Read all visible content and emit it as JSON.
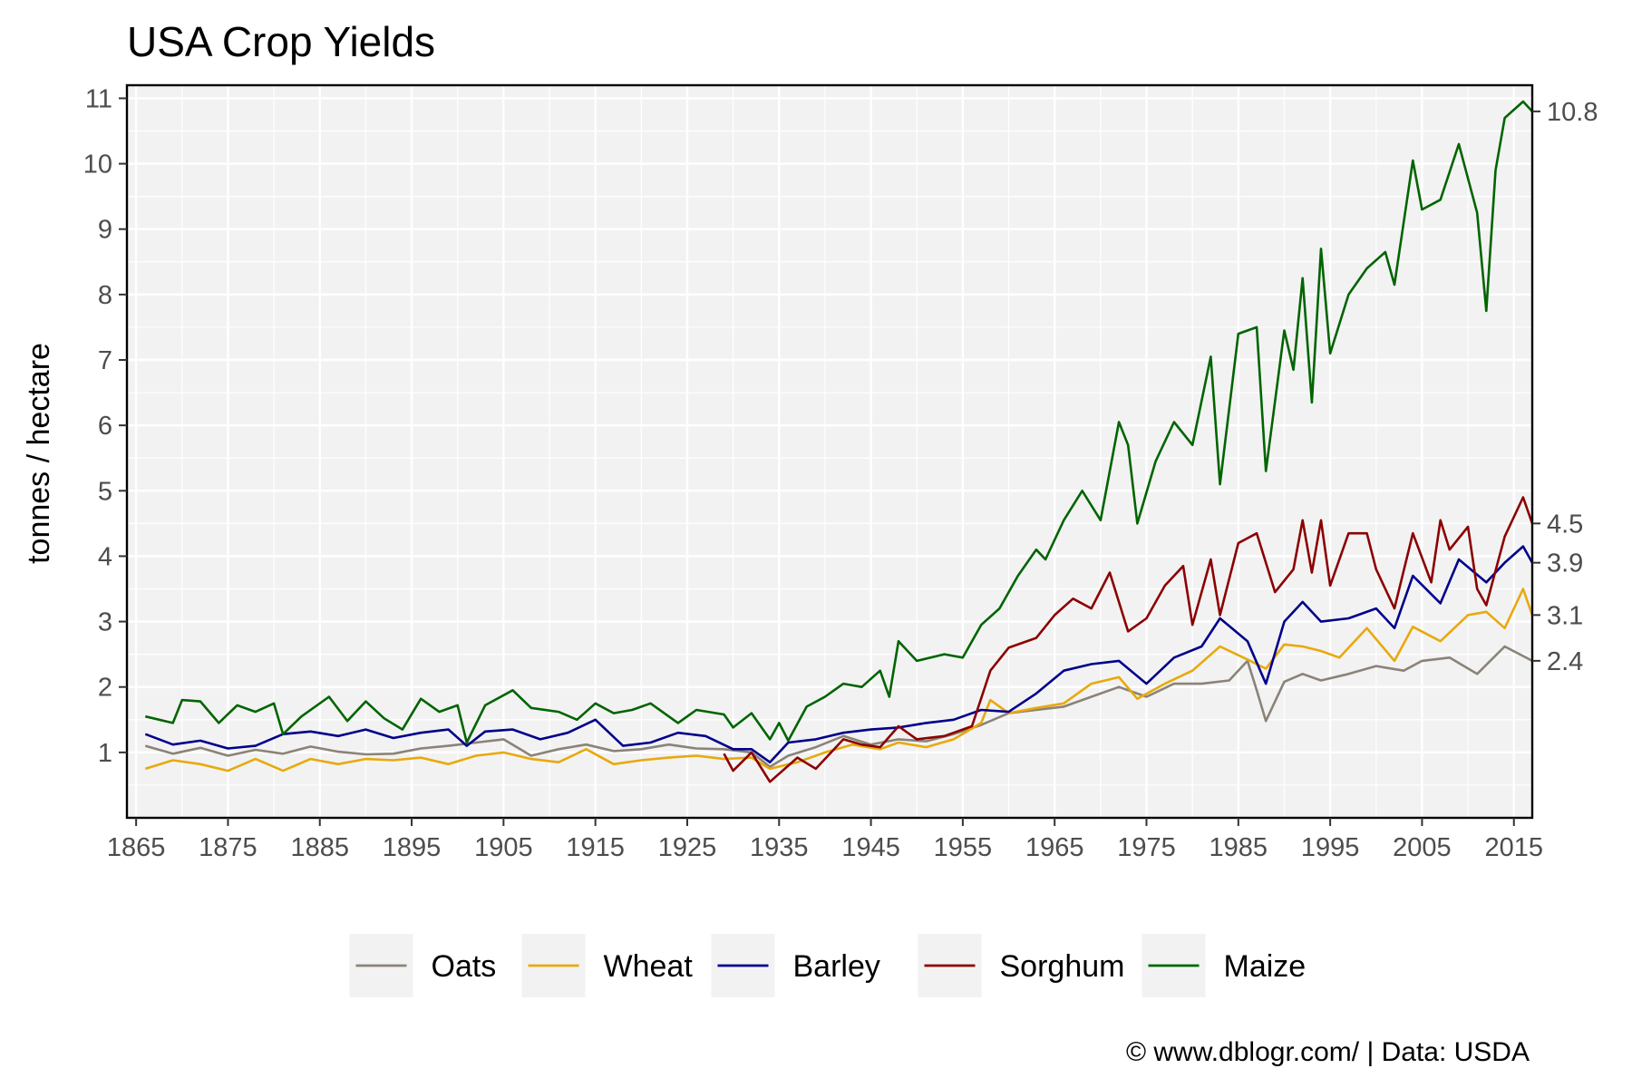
{
  "chart_data": {
    "type": "line",
    "title": "USA Crop Yields",
    "xlabel": "",
    "ylabel": "tonnes / hectare",
    "xlim": [
      1864,
      2017
    ],
    "ylim": [
      0,
      11.2
    ],
    "xticks": [
      1865,
      1875,
      1885,
      1895,
      1905,
      1915,
      1925,
      1935,
      1945,
      1955,
      1965,
      1975,
      1985,
      1995,
      2005,
      2015
    ],
    "yticks": [
      1,
      2,
      3,
      4,
      5,
      6,
      7,
      8,
      9,
      10,
      11
    ],
    "grid": true,
    "legend_position": "bottom",
    "caption": "© www.dblogr.com/  |  Data: USDA",
    "end_labels": [
      {
        "series": "Maize",
        "label": "10.8",
        "value": 10.8
      },
      {
        "series": "Sorghum",
        "label": "4.5",
        "value": 4.5
      },
      {
        "series": "Barley",
        "label": "3.9",
        "value": 3.9
      },
      {
        "series": "Wheat",
        "label": "3.1",
        "value": 3.1
      },
      {
        "series": "Oats",
        "label": "2.4",
        "value": 2.4
      }
    ],
    "series": [
      {
        "name": "Oats",
        "color": "#8b8378",
        "points": [
          [
            1866,
            1.1
          ],
          [
            1869,
            0.98
          ],
          [
            1872,
            1.07
          ],
          [
            1875,
            0.95
          ],
          [
            1878,
            1.04
          ],
          [
            1881,
            0.98
          ],
          [
            1884,
            1.09
          ],
          [
            1887,
            1.01
          ],
          [
            1890,
            0.97
          ],
          [
            1893,
            0.98
          ],
          [
            1896,
            1.06
          ],
          [
            1899,
            1.1
          ],
          [
            1902,
            1.15
          ],
          [
            1905,
            1.2
          ],
          [
            1908,
            0.95
          ],
          [
            1911,
            1.05
          ],
          [
            1914,
            1.12
          ],
          [
            1917,
            1.02
          ],
          [
            1920,
            1.05
          ],
          [
            1923,
            1.12
          ],
          [
            1926,
            1.06
          ],
          [
            1929,
            1.05
          ],
          [
            1932,
            1.0
          ],
          [
            1934,
            0.78
          ],
          [
            1936,
            0.95
          ],
          [
            1939,
            1.08
          ],
          [
            1942,
            1.25
          ],
          [
            1945,
            1.12
          ],
          [
            1948,
            1.2
          ],
          [
            1951,
            1.17
          ],
          [
            1954,
            1.28
          ],
          [
            1957,
            1.42
          ],
          [
            1960,
            1.6
          ],
          [
            1963,
            1.65
          ],
          [
            1966,
            1.7
          ],
          [
            1969,
            1.85
          ],
          [
            1972,
            2.0
          ],
          [
            1975,
            1.85
          ],
          [
            1978,
            2.05
          ],
          [
            1981,
            2.05
          ],
          [
            1984,
            2.1
          ],
          [
            1986,
            2.4
          ],
          [
            1987,
            1.95
          ],
          [
            1988,
            1.48
          ],
          [
            1990,
            2.08
          ],
          [
            1992,
            2.2
          ],
          [
            1994,
            2.1
          ],
          [
            1997,
            2.2
          ],
          [
            2000,
            2.32
          ],
          [
            2003,
            2.25
          ],
          [
            2005,
            2.4
          ],
          [
            2008,
            2.45
          ],
          [
            2011,
            2.2
          ],
          [
            2014,
            2.62
          ],
          [
            2017,
            2.4
          ]
        ]
      },
      {
        "name": "Wheat",
        "color": "#e8a90c",
        "points": [
          [
            1866,
            0.75
          ],
          [
            1869,
            0.88
          ],
          [
            1872,
            0.82
          ],
          [
            1875,
            0.72
          ],
          [
            1878,
            0.9
          ],
          [
            1881,
            0.72
          ],
          [
            1884,
            0.9
          ],
          [
            1887,
            0.82
          ],
          [
            1890,
            0.9
          ],
          [
            1893,
            0.88
          ],
          [
            1896,
            0.92
          ],
          [
            1899,
            0.82
          ],
          [
            1902,
            0.95
          ],
          [
            1905,
            1.0
          ],
          [
            1908,
            0.9
          ],
          [
            1911,
            0.85
          ],
          [
            1914,
            1.05
          ],
          [
            1917,
            0.82
          ],
          [
            1920,
            0.88
          ],
          [
            1923,
            0.92
          ],
          [
            1926,
            0.95
          ],
          [
            1929,
            0.9
          ],
          [
            1932,
            0.92
          ],
          [
            1934,
            0.75
          ],
          [
            1937,
            0.85
          ],
          [
            1940,
            1.0
          ],
          [
            1943,
            1.12
          ],
          [
            1946,
            1.05
          ],
          [
            1948,
            1.15
          ],
          [
            1951,
            1.08
          ],
          [
            1954,
            1.2
          ],
          [
            1957,
            1.45
          ],
          [
            1958,
            1.8
          ],
          [
            1960,
            1.6
          ],
          [
            1963,
            1.68
          ],
          [
            1966,
            1.75
          ],
          [
            1969,
            2.05
          ],
          [
            1972,
            2.15
          ],
          [
            1974,
            1.82
          ],
          [
            1977,
            2.05
          ],
          [
            1980,
            2.25
          ],
          [
            1983,
            2.62
          ],
          [
            1986,
            2.42
          ],
          [
            1988,
            2.28
          ],
          [
            1990,
            2.65
          ],
          [
            1992,
            2.62
          ],
          [
            1994,
            2.55
          ],
          [
            1996,
            2.45
          ],
          [
            1999,
            2.9
          ],
          [
            2002,
            2.4
          ],
          [
            2004,
            2.92
          ],
          [
            2007,
            2.7
          ],
          [
            2010,
            3.1
          ],
          [
            2012,
            3.15
          ],
          [
            2014,
            2.9
          ],
          [
            2016,
            3.5
          ],
          [
            2017,
            3.1
          ]
        ]
      },
      {
        "name": "Barley",
        "color": "#00008b",
        "points": [
          [
            1866,
            1.28
          ],
          [
            1869,
            1.12
          ],
          [
            1872,
            1.18
          ],
          [
            1875,
            1.06
          ],
          [
            1878,
            1.1
          ],
          [
            1881,
            1.28
          ],
          [
            1884,
            1.32
          ],
          [
            1887,
            1.25
          ],
          [
            1890,
            1.35
          ],
          [
            1893,
            1.22
          ],
          [
            1896,
            1.3
          ],
          [
            1899,
            1.35
          ],
          [
            1901,
            1.1
          ],
          [
            1903,
            1.32
          ],
          [
            1906,
            1.35
          ],
          [
            1909,
            1.2
          ],
          [
            1912,
            1.3
          ],
          [
            1915,
            1.5
          ],
          [
            1918,
            1.1
          ],
          [
            1921,
            1.15
          ],
          [
            1924,
            1.3
          ],
          [
            1927,
            1.25
          ],
          [
            1930,
            1.05
          ],
          [
            1932,
            1.05
          ],
          [
            1934,
            0.85
          ],
          [
            1936,
            1.15
          ],
          [
            1939,
            1.2
          ],
          [
            1942,
            1.3
          ],
          [
            1945,
            1.35
          ],
          [
            1948,
            1.38
          ],
          [
            1951,
            1.45
          ],
          [
            1954,
            1.5
          ],
          [
            1957,
            1.65
          ],
          [
            1960,
            1.62
          ],
          [
            1963,
            1.9
          ],
          [
            1966,
            2.25
          ],
          [
            1969,
            2.35
          ],
          [
            1972,
            2.4
          ],
          [
            1975,
            2.05
          ],
          [
            1978,
            2.45
          ],
          [
            1981,
            2.62
          ],
          [
            1983,
            3.05
          ],
          [
            1986,
            2.7
          ],
          [
            1988,
            2.05
          ],
          [
            1990,
            3.0
          ],
          [
            1992,
            3.3
          ],
          [
            1994,
            3.0
          ],
          [
            1997,
            3.05
          ],
          [
            2000,
            3.2
          ],
          [
            2002,
            2.9
          ],
          [
            2004,
            3.7
          ],
          [
            2007,
            3.28
          ],
          [
            2009,
            3.95
          ],
          [
            2012,
            3.6
          ],
          [
            2014,
            3.9
          ],
          [
            2016,
            4.15
          ],
          [
            2017,
            3.9
          ]
        ]
      },
      {
        "name": "Sorghum",
        "color": "#8b0000",
        "points": [
          [
            1929,
            0.98
          ],
          [
            1930,
            0.72
          ],
          [
            1932,
            1.0
          ],
          [
            1934,
            0.55
          ],
          [
            1937,
            0.92
          ],
          [
            1939,
            0.75
          ],
          [
            1942,
            1.2
          ],
          [
            1944,
            1.12
          ],
          [
            1946,
            1.08
          ],
          [
            1948,
            1.4
          ],
          [
            1950,
            1.2
          ],
          [
            1953,
            1.25
          ],
          [
            1956,
            1.4
          ],
          [
            1958,
            2.25
          ],
          [
            1960,
            2.6
          ],
          [
            1963,
            2.75
          ],
          [
            1965,
            3.1
          ],
          [
            1967,
            3.35
          ],
          [
            1969,
            3.2
          ],
          [
            1971,
            3.75
          ],
          [
            1973,
            2.85
          ],
          [
            1975,
            3.05
          ],
          [
            1977,
            3.55
          ],
          [
            1979,
            3.85
          ],
          [
            1980,
            2.95
          ],
          [
            1982,
            3.95
          ],
          [
            1983,
            3.1
          ],
          [
            1985,
            4.2
          ],
          [
            1987,
            4.35
          ],
          [
            1989,
            3.45
          ],
          [
            1991,
            3.8
          ],
          [
            1992,
            4.55
          ],
          [
            1993,
            3.75
          ],
          [
            1994,
            4.55
          ],
          [
            1995,
            3.55
          ],
          [
            1997,
            4.35
          ],
          [
            1999,
            4.35
          ],
          [
            2000,
            3.8
          ],
          [
            2002,
            3.2
          ],
          [
            2004,
            4.35
          ],
          [
            2006,
            3.6
          ],
          [
            2007,
            4.55
          ],
          [
            2008,
            4.1
          ],
          [
            2010,
            4.45
          ],
          [
            2011,
            3.5
          ],
          [
            2012,
            3.25
          ],
          [
            2014,
            4.3
          ],
          [
            2016,
            4.9
          ],
          [
            2017,
            4.5
          ]
        ]
      },
      {
        "name": "Maize",
        "color": "#006400",
        "points": [
          [
            1866,
            1.55
          ],
          [
            1869,
            1.45
          ],
          [
            1870,
            1.8
          ],
          [
            1872,
            1.78
          ],
          [
            1874,
            1.45
          ],
          [
            1876,
            1.72
          ],
          [
            1878,
            1.62
          ],
          [
            1880,
            1.75
          ],
          [
            1881,
            1.28
          ],
          [
            1883,
            1.55
          ],
          [
            1886,
            1.85
          ],
          [
            1888,
            1.48
          ],
          [
            1890,
            1.78
          ],
          [
            1892,
            1.52
          ],
          [
            1894,
            1.35
          ],
          [
            1896,
            1.82
          ],
          [
            1898,
            1.62
          ],
          [
            1900,
            1.72
          ],
          [
            1901,
            1.15
          ],
          [
            1903,
            1.72
          ],
          [
            1906,
            1.95
          ],
          [
            1908,
            1.68
          ],
          [
            1911,
            1.62
          ],
          [
            1913,
            1.5
          ],
          [
            1915,
            1.75
          ],
          [
            1917,
            1.6
          ],
          [
            1919,
            1.65
          ],
          [
            1921,
            1.75
          ],
          [
            1924,
            1.45
          ],
          [
            1926,
            1.65
          ],
          [
            1929,
            1.58
          ],
          [
            1930,
            1.38
          ],
          [
            1932,
            1.6
          ],
          [
            1934,
            1.2
          ],
          [
            1935,
            1.45
          ],
          [
            1936,
            1.18
          ],
          [
            1938,
            1.7
          ],
          [
            1940,
            1.85
          ],
          [
            1942,
            2.05
          ],
          [
            1944,
            2.0
          ],
          [
            1946,
            2.25
          ],
          [
            1947,
            1.85
          ],
          [
            1948,
            2.7
          ],
          [
            1950,
            2.4
          ],
          [
            1953,
            2.5
          ],
          [
            1955,
            2.45
          ],
          [
            1957,
            2.95
          ],
          [
            1959,
            3.2
          ],
          [
            1961,
            3.7
          ],
          [
            1963,
            4.1
          ],
          [
            1964,
            3.95
          ],
          [
            1966,
            4.55
          ],
          [
            1968,
            5.0
          ],
          [
            1970,
            4.55
          ],
          [
            1972,
            6.05
          ],
          [
            1973,
            5.7
          ],
          [
            1974,
            4.5
          ],
          [
            1976,
            5.45
          ],
          [
            1978,
            6.05
          ],
          [
            1980,
            5.7
          ],
          [
            1982,
            7.05
          ],
          [
            1983,
            5.1
          ],
          [
            1985,
            7.4
          ],
          [
            1987,
            7.5
          ],
          [
            1988,
            5.3
          ],
          [
            1990,
            7.45
          ],
          [
            1991,
            6.85
          ],
          [
            1992,
            8.25
          ],
          [
            1993,
            6.35
          ],
          [
            1994,
            8.7
          ],
          [
            1995,
            7.1
          ],
          [
            1997,
            8.0
          ],
          [
            1999,
            8.4
          ],
          [
            2001,
            8.65
          ],
          [
            2002,
            8.15
          ],
          [
            2004,
            10.05
          ],
          [
            2005,
            9.3
          ],
          [
            2007,
            9.45
          ],
          [
            2009,
            10.3
          ],
          [
            2011,
            9.25
          ],
          [
            2012,
            7.75
          ],
          [
            2013,
            9.9
          ],
          [
            2014,
            10.7
          ],
          [
            2016,
            10.95
          ],
          [
            2017,
            10.8
          ]
        ]
      }
    ]
  }
}
